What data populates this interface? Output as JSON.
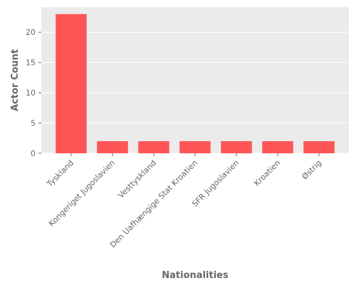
{
  "chart_data": {
    "type": "bar",
    "title": "",
    "xlabel": "Nationalities",
    "ylabel": "Actor Count",
    "categories": [
      "Tyskland",
      "Kongeriget Jugoslavien",
      "Vesttyskland",
      "Den Uafhængige Stat Kroatien",
      "SFR Jugoslavien",
      "Kroatien",
      "Østrig"
    ],
    "values": [
      23,
      2,
      2,
      2,
      2,
      2,
      2
    ],
    "ylim": [
      0,
      24.15
    ],
    "yticks": [
      0,
      5,
      10,
      15,
      20
    ],
    "grid": true,
    "colors": {
      "bar": "#ff5557",
      "plot_background": "#ebebeb",
      "grid": "#ffffff",
      "text": "#666666"
    }
  }
}
